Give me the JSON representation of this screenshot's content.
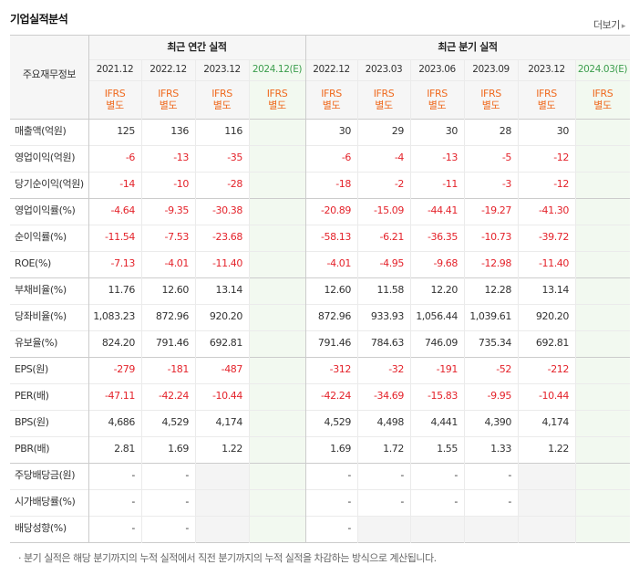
{
  "section_title": "기업실적분석",
  "more_link": "더보기",
  "more_icon": "chevron-right-icon",
  "row_header_title": "주요재무정보",
  "groups": [
    "최근 연간 실적",
    "최근 분기 실적"
  ],
  "periods": [
    "2021.12",
    "2022.12",
    "2023.12",
    "2024.12(E)",
    "2022.12",
    "2023.03",
    "2023.06",
    "2023.09",
    "2023.12",
    "2024.03(E)"
  ],
  "estimate_columns": [
    3,
    9
  ],
  "ifrs_labels": [
    [
      "IFRS",
      "별도"
    ],
    [
      "IFRS",
      "별도"
    ],
    [
      "IFRS",
      "별도"
    ],
    [
      "IFRS",
      "별도"
    ],
    [
      "IFRS",
      "별도"
    ],
    [
      "IFRS",
      "별도"
    ],
    [
      "IFRS",
      "별도"
    ],
    [
      "IFRS",
      "별도"
    ],
    [
      "IFRS",
      "별도"
    ],
    [
      "IFRS",
      "별도"
    ]
  ],
  "rows": [
    {
      "label": "매출액(억원)",
      "values": [
        "125",
        "136",
        "116",
        "",
        "30",
        "29",
        "30",
        "28",
        "30",
        ""
      ]
    },
    {
      "label": "영업이익(억원)",
      "values": [
        "-6",
        "-13",
        "-35",
        "",
        "-6",
        "-4",
        "-13",
        "-5",
        "-12",
        ""
      ]
    },
    {
      "label": "당기순이익(억원)",
      "values": [
        "-14",
        "-10",
        "-28",
        "",
        "-18",
        "-2",
        "-11",
        "-3",
        "-12",
        ""
      ]
    },
    {
      "label": "영업이익률(%)",
      "values": [
        "-4.64",
        "-9.35",
        "-30.38",
        "",
        "-20.89",
        "-15.09",
        "-44.41",
        "-19.27",
        "-41.30",
        ""
      ]
    },
    {
      "label": "순이익률(%)",
      "values": [
        "-11.54",
        "-7.53",
        "-23.68",
        "",
        "-58.13",
        "-6.21",
        "-36.35",
        "-10.73",
        "-39.72",
        ""
      ]
    },
    {
      "label": "ROE(%)",
      "values": [
        "-7.13",
        "-4.01",
        "-11.40",
        "",
        "-4.01",
        "-4.95",
        "-9.68",
        "-12.98",
        "-11.40",
        ""
      ]
    },
    {
      "label": "부채비율(%)",
      "values": [
        "11.76",
        "12.60",
        "13.14",
        "",
        "12.60",
        "11.58",
        "12.20",
        "12.28",
        "13.14",
        ""
      ]
    },
    {
      "label": "당좌비율(%)",
      "values": [
        "1,083.23",
        "872.96",
        "920.20",
        "",
        "872.96",
        "933.93",
        "1,056.44",
        "1,039.61",
        "920.20",
        ""
      ]
    },
    {
      "label": "유보율(%)",
      "values": [
        "824.20",
        "791.46",
        "692.81",
        "",
        "791.46",
        "784.63",
        "746.09",
        "735.34",
        "692.81",
        ""
      ]
    },
    {
      "label": "EPS(원)",
      "values": [
        "-279",
        "-181",
        "-487",
        "",
        "-312",
        "-32",
        "-191",
        "-52",
        "-212",
        ""
      ]
    },
    {
      "label": "PER(배)",
      "values": [
        "-47.11",
        "-42.24",
        "-10.44",
        "",
        "-42.24",
        "-34.69",
        "-15.83",
        "-9.95",
        "-10.44",
        ""
      ]
    },
    {
      "label": "BPS(원)",
      "values": [
        "4,686",
        "4,529",
        "4,174",
        "",
        "4,529",
        "4,498",
        "4,441",
        "4,390",
        "4,174",
        ""
      ]
    },
    {
      "label": "PBR(배)",
      "values": [
        "2.81",
        "1.69",
        "1.22",
        "",
        "1.69",
        "1.72",
        "1.55",
        "1.33",
        "1.22",
        ""
      ]
    },
    {
      "label": "주당배당금(원)",
      "values": [
        "-",
        "-",
        null,
        "",
        "-",
        "-",
        "-",
        "-",
        null,
        ""
      ]
    },
    {
      "label": "시가배당률(%)",
      "values": [
        "-",
        "-",
        null,
        "",
        "-",
        "-",
        "-",
        "-",
        null,
        ""
      ]
    },
    {
      "label": "배당성향(%)",
      "values": [
        "-",
        "-",
        null,
        "",
        "-",
        null,
        null,
        null,
        null,
        ""
      ]
    }
  ],
  "footnote": "· 분기 실적은 해당 분기까지의 누적 실적에서 직전 분기까지의 누적 실적을 차감하는 방식으로 계산됩니다.",
  "colors": {
    "negative": "#e4232b",
    "ifrs": "#ef6a1f",
    "estimate_bg": "#f2f9f0",
    "estimate_header": "#3c9e4d",
    "header_bg": "#f6f6f6",
    "border_strong": "#cccccc",
    "border_light": "#ebebeb"
  }
}
